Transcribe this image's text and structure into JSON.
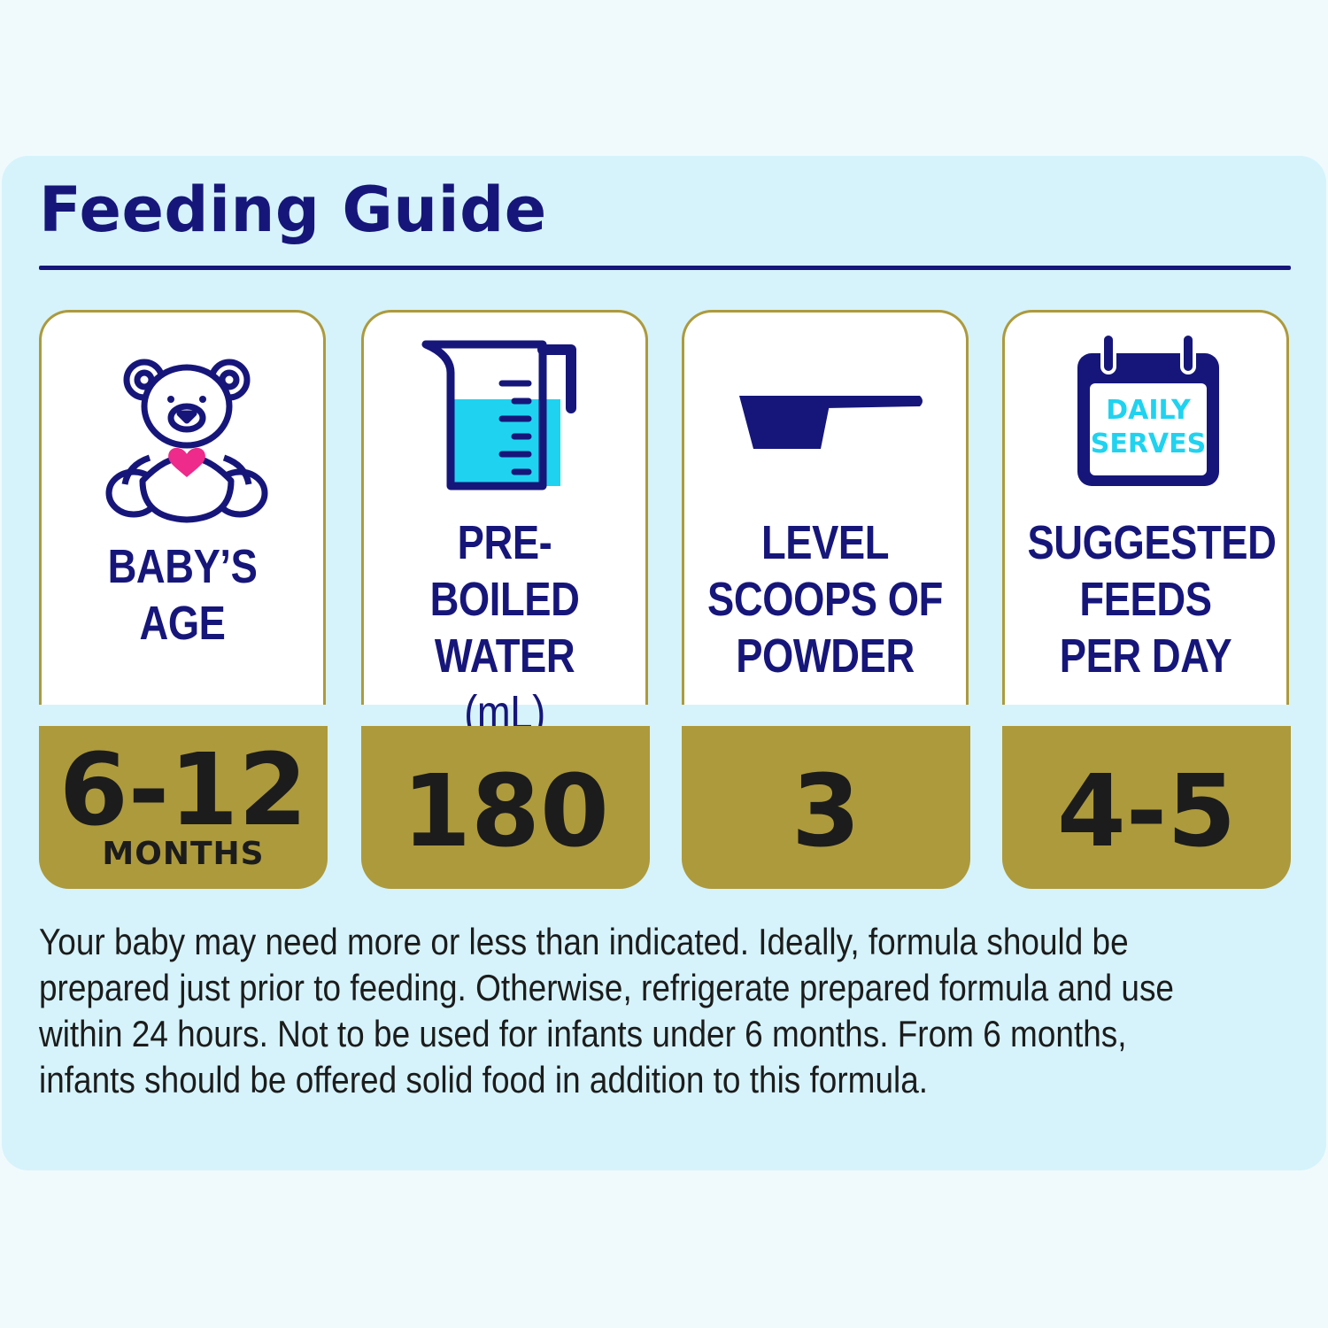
{
  "title": "Feeding Guide",
  "columns": [
    {
      "label": [
        "BABY’S",
        "AGE"
      ],
      "value": "6-12",
      "unit": "MONTHS",
      "icon": "teddy-bear-icon"
    },
    {
      "label": [
        "PRE-BOILED",
        "WATER",
        "(mL)"
      ],
      "value": "180",
      "unit": "",
      "icon": "measuring-jug-icon"
    },
    {
      "label": [
        "LEVEL",
        "SCOOPS OF",
        "POWDER"
      ],
      "value": "3",
      "unit": "",
      "icon": "scoop-icon"
    },
    {
      "label": [
        "SUGGESTED",
        "FEEDS",
        "PER DAY"
      ],
      "value": "4-5",
      "unit": "",
      "icon": "calendar-icon"
    }
  ],
  "calendar_text": [
    "DAILY",
    "SERVES"
  ],
  "note_lines": [
    "Your baby may need more or less than indicated. Ideally, formula should be",
    "prepared just prior to feeding. Otherwise, refrigerate prepared formula and use",
    "within 24 hours. Not to be used for infants under 6 months. From 6 months,",
    "infants should be offered solid food in addition to this formula."
  ],
  "colors": {
    "navy": "#16167a",
    "gold": "#ad9a3c",
    "cyan": "#1fd3f0",
    "pink": "#ee2a8a",
    "panel": "#d6f3fb"
  }
}
